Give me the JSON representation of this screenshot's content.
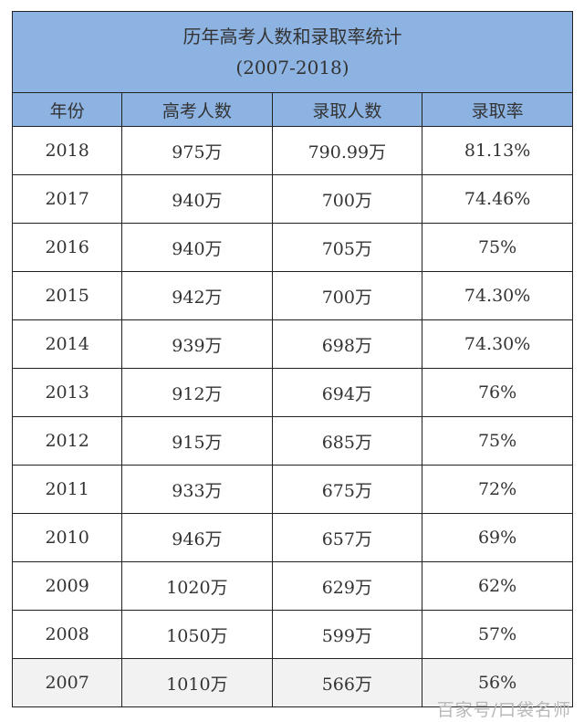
{
  "title": "历年高考人数和录取率统计",
  "subtitle": "(2007-2018)",
  "columns": [
    "年份",
    "高考人数",
    "录取人数",
    "录取率"
  ],
  "rows": [
    [
      "2018",
      "975万",
      "790.99万",
      "81.13%"
    ],
    [
      "2017",
      "940万",
      "700万",
      "74.46%"
    ],
    [
      "2016",
      "940万",
      "705万",
      "75%"
    ],
    [
      "2015",
      "942万",
      "700万",
      "74.30%"
    ],
    [
      "2014",
      "939万",
      "698万",
      "74.30%"
    ],
    [
      "2013",
      "912万",
      "694万",
      "76%"
    ],
    [
      "2012",
      "915万",
      "685万",
      "75%"
    ],
    [
      "2011",
      "933万",
      "675万",
      "72%"
    ],
    [
      "2010",
      "946万",
      "657万",
      "69%"
    ],
    [
      "2009",
      "1020万",
      "629万",
      "62%"
    ],
    [
      "2008",
      "1050万",
      "599万",
      "57%"
    ],
    [
      "2007",
      "1010万",
      "566万",
      "56%"
    ]
  ],
  "watermark": "百家号/口袋名师",
  "colors": {
    "header_bg": "#8db3e2",
    "last_row_bg": "#f2f2f2"
  }
}
